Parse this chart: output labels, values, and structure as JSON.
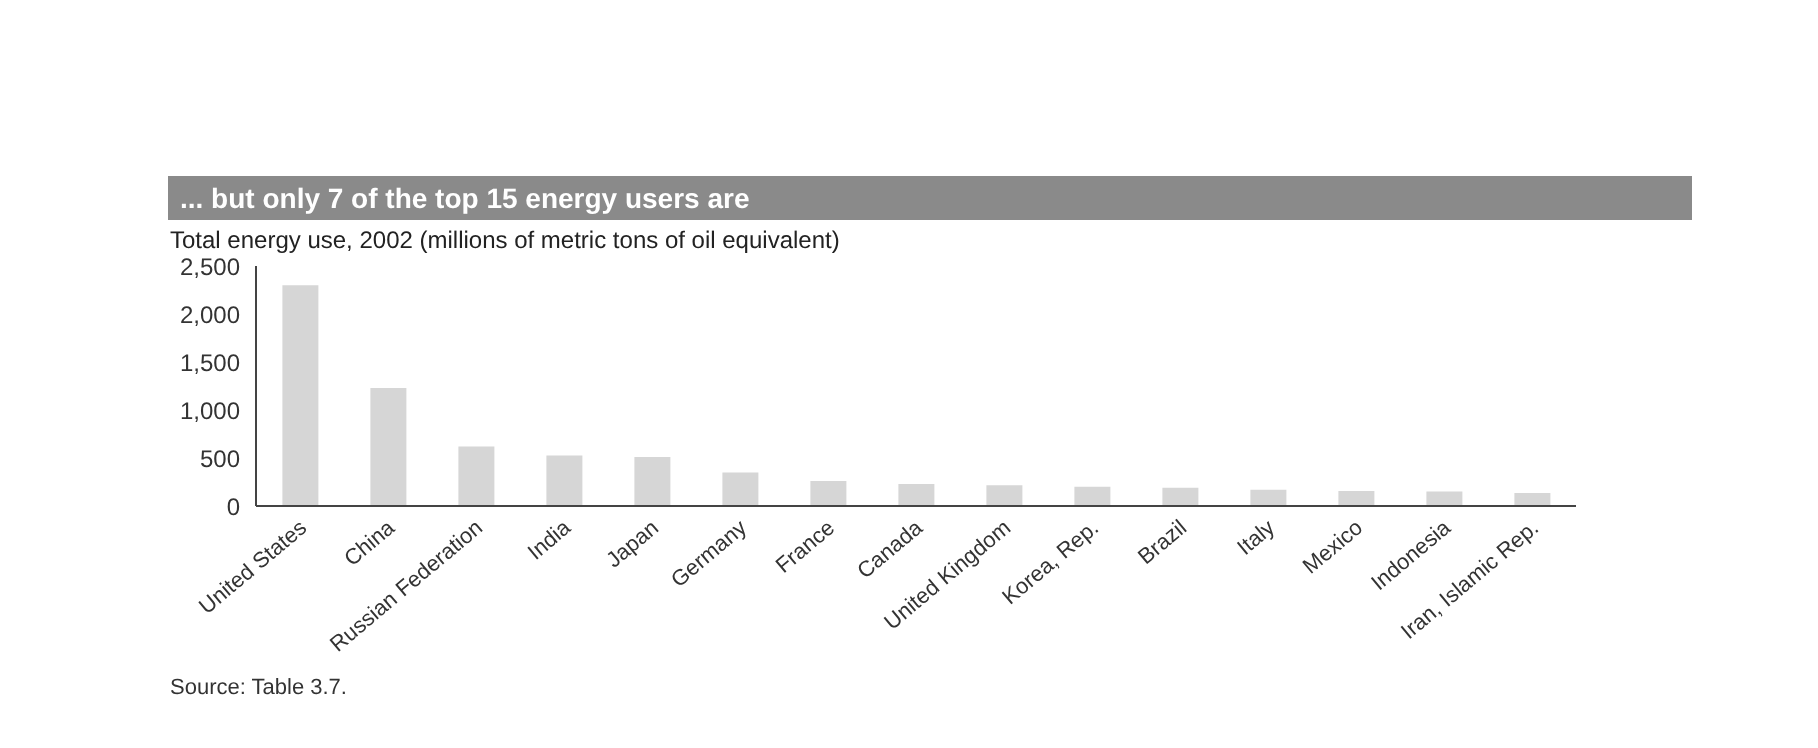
{
  "chart_data": {
    "type": "bar",
    "title": "... but only 7 of the top 15 energy users are",
    "subtitle": "Total energy use, 2002 (millions of metric tons of oil equivalent)",
    "categories": [
      "United States",
      "China",
      "Russian Federation",
      "India",
      "Japan",
      "Germany",
      "France",
      "Canada",
      "United Kingdom",
      "Korea, Rep.",
      "Brazil",
      "Italy",
      "Mexico",
      "Indonesia",
      "Iran, Islamic Rep."
    ],
    "values": [
      2300,
      1230,
      620,
      525,
      510,
      350,
      260,
      230,
      215,
      200,
      190,
      170,
      155,
      150,
      135
    ],
    "color": "#d6d6d6",
    "ylim": [
      0,
      2500
    ],
    "yticks": [
      {
        "value": 0,
        "label": "0"
      },
      {
        "value": 500,
        "label": "500"
      },
      {
        "value": 1000,
        "label": "1,000"
      },
      {
        "value": 1500,
        "label": "1,500"
      },
      {
        "value": 2000,
        "label": "2,000"
      },
      {
        "value": 2500,
        "label": "2,500"
      }
    ],
    "grid": false,
    "annotations": [
      "Source: Table 3.7."
    ]
  }
}
